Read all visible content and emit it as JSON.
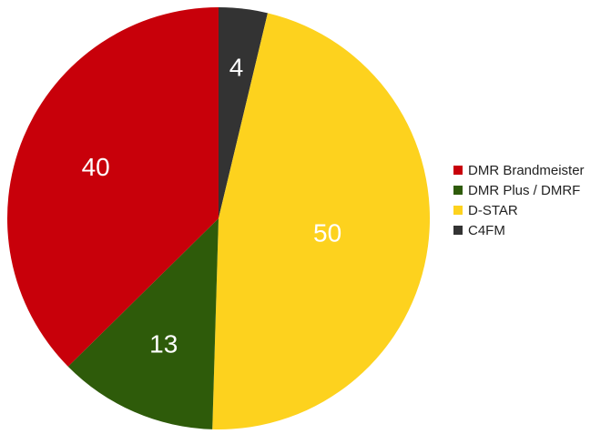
{
  "chart_data": {
    "type": "pie",
    "title": "",
    "start_angle_deg": 0,
    "direction": "clockwise",
    "legend_position": "right",
    "slices": [
      {
        "label": "C4FM",
        "value": 4,
        "color": "#333333"
      },
      {
        "label": "D-STAR",
        "value": 50,
        "color": "#fdd21e"
      },
      {
        "label": "DMR Plus / DMRF",
        "value": 13,
        "color": "#2e5b0a"
      },
      {
        "label": "DMR Brandmeister",
        "value": 40,
        "color": "#c8000a"
      }
    ],
    "legend": [
      {
        "label": "DMR Brandmeister",
        "color": "#c8000a"
      },
      {
        "label": "DMR Plus / DMRF",
        "color": "#2e5b0a"
      },
      {
        "label": "D-STAR",
        "color": "#fdd21e"
      },
      {
        "label": "C4FM",
        "color": "#333333"
      }
    ]
  }
}
